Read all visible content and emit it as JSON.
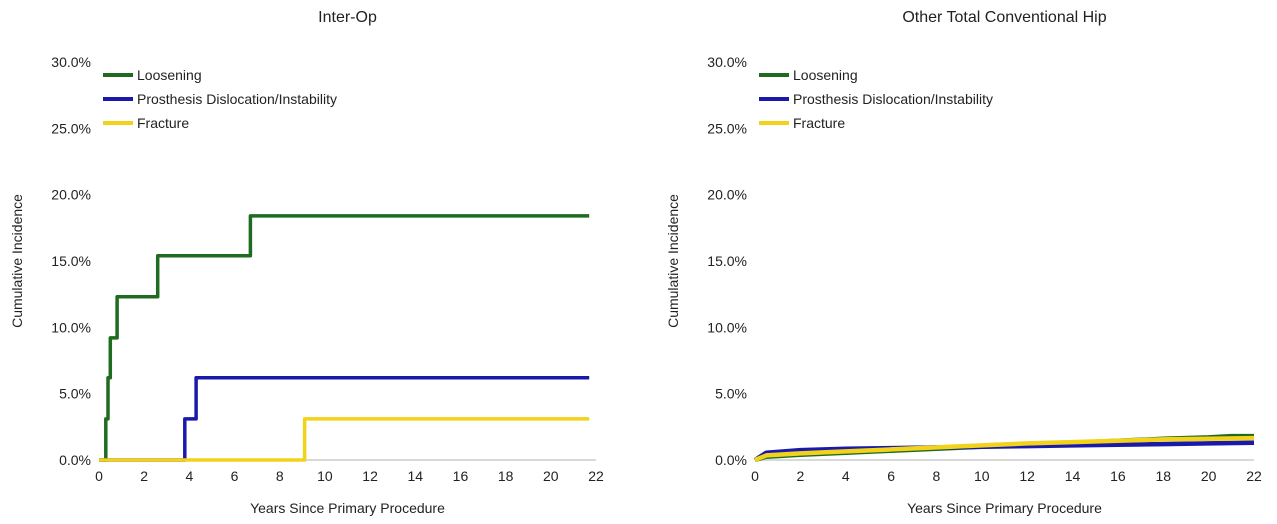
{
  "chart_data": [
    {
      "type": "line",
      "title": "Inter-Op",
      "xlabel": "Years Since Primary Procedure",
      "ylabel": "Cumulative Incidence",
      "xlim": [
        0,
        22
      ],
      "ylim": [
        0,
        30
      ],
      "xticks": [
        "0",
        "2",
        "4",
        "6",
        "8",
        "10",
        "12",
        "14",
        "16",
        "18",
        "20",
        "22"
      ],
      "yticks": [
        "0.0%",
        "5.0%",
        "10.0%",
        "15.0%",
        "20.0%",
        "25.0%",
        "30.0%"
      ],
      "grid": false,
      "legend_position": "top-left",
      "step": true,
      "series": [
        {
          "name": "Loosening",
          "color": "#1f6b1f",
          "x": [
            0,
            0.3,
            0.4,
            0.5,
            0.8,
            2.6,
            6.7,
            21.7
          ],
          "y": [
            0,
            3.1,
            6.2,
            9.2,
            12.3,
            15.4,
            18.4,
            18.4
          ]
        },
        {
          "name": "Prosthesis Dislocation/Instability",
          "color": "#1a1aaa",
          "x": [
            0,
            3.8,
            4.3,
            21.7
          ],
          "y": [
            0,
            3.1,
            6.2,
            6.2
          ]
        },
        {
          "name": "Fracture",
          "color": "#f2d21b",
          "x": [
            0,
            9.1,
            21.7
          ],
          "y": [
            0,
            3.1,
            3.1
          ]
        }
      ]
    },
    {
      "type": "line",
      "title": "Other Total Conventional Hip",
      "xlabel": "Years Since Primary Procedure",
      "ylabel": "Cumulative Incidence",
      "xlim": [
        0,
        22
      ],
      "ylim": [
        0,
        30
      ],
      "xticks": [
        "0",
        "2",
        "4",
        "6",
        "8",
        "10",
        "12",
        "14",
        "16",
        "18",
        "20",
        "22"
      ],
      "yticks": [
        "0.0%",
        "5.0%",
        "10.0%",
        "15.0%",
        "20.0%",
        "25.0%",
        "30.0%"
      ],
      "grid": false,
      "legend_position": "top-left",
      "step": false,
      "series": [
        {
          "name": "Loosening",
          "color": "#1f6b1f",
          "x": [
            0,
            0.5,
            2,
            4,
            6,
            8,
            10,
            12,
            14,
            16,
            18,
            20,
            21,
            22
          ],
          "y": [
            0,
            0.25,
            0.4,
            0.55,
            0.7,
            0.85,
            1.0,
            1.15,
            1.3,
            1.45,
            1.6,
            1.7,
            1.8,
            1.8
          ]
        },
        {
          "name": "Prosthesis Dislocation/Instability",
          "color": "#1a1aaa",
          "x": [
            0,
            0.5,
            2,
            4,
            6,
            8,
            10,
            12,
            14,
            16,
            18,
            20,
            22
          ],
          "y": [
            0,
            0.55,
            0.75,
            0.85,
            0.9,
            0.95,
            1.0,
            1.05,
            1.1,
            1.15,
            1.2,
            1.25,
            1.3
          ]
        },
        {
          "name": "Fracture",
          "color": "#f2d21b",
          "x": [
            0,
            0.5,
            2,
            4,
            6,
            8,
            10,
            12,
            14,
            16,
            18,
            20,
            22
          ],
          "y": [
            0,
            0.35,
            0.5,
            0.65,
            0.8,
            0.95,
            1.1,
            1.25,
            1.35,
            1.45,
            1.55,
            1.6,
            1.65
          ]
        }
      ]
    }
  ]
}
